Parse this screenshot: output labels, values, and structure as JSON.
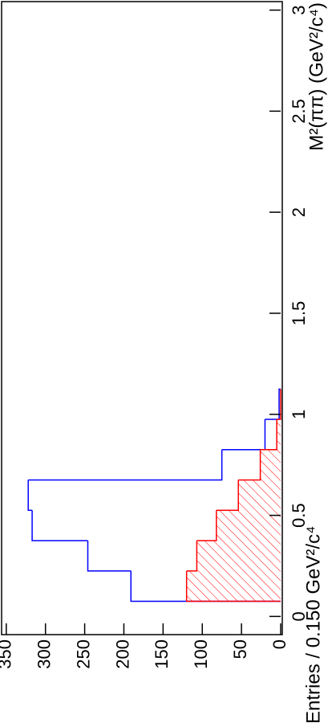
{
  "chart_data": {
    "type": "histogram",
    "x_label": "M²(ππ) (GeV²/c⁴)",
    "y_label": "Entries / 0.150 GeV²/c⁴",
    "bins": [
      0.075,
      0.225,
      0.375,
      0.525,
      0.675,
      0.825,
      0.975,
      1.125
    ],
    "series": [
      {
        "color": "#0000ff",
        "values": [
          191,
          246,
          317,
          322,
          75,
          20,
          2
        ]
      },
      {
        "color": "#ff0000",
        "values": [
          120,
          107,
          82,
          54,
          26,
          5,
          0
        ],
        "hatched": true
      }
    ],
    "xlim": [
      -0.09,
      3.05
    ],
    "xticks": [
      0,
      0.5,
      1,
      1.5,
      2,
      2.5,
      3
    ],
    "ylim": [
      0,
      358
    ],
    "yticks": [
      0,
      50,
      100,
      150,
      200,
      250,
      300,
      350
    ]
  }
}
